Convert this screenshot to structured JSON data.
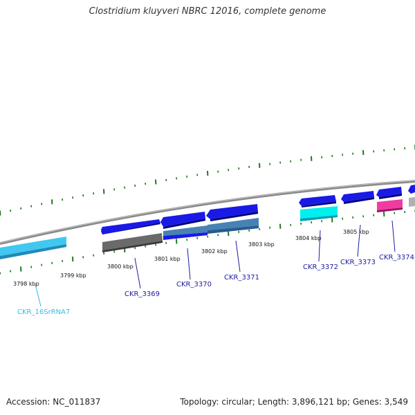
{
  "title": "Clostridium kluyveri NBRC 12016, complete genome",
  "footer": {
    "accession": "Accession: NC_011837",
    "stats": "Topology: circular; Length: 3,896,121 bp; Genes: 3,549"
  },
  "colors": {
    "cds_blue": "#1a1ae6",
    "rrna_cyan": "#40c8f0",
    "label_blue": "#1a1aa0",
    "label_cyan": "#3ab8e0",
    "tick_green": "#1a7a1a",
    "backbone_gray": "#888888"
  },
  "position_labels": [
    "3798 kbp",
    "3799 kbp",
    "3800 kbp",
    "3801 kbp",
    "3802 kbp",
    "3803 kbp",
    "3804 kbp",
    "3805 kbp"
  ],
  "gene_labels": [
    "CKR_16SrRNA7",
    "CKR_3369",
    "CKR_3370",
    "CKR_3371",
    "CKR_3372",
    "CKR_3373",
    "CKR_3374"
  ]
}
